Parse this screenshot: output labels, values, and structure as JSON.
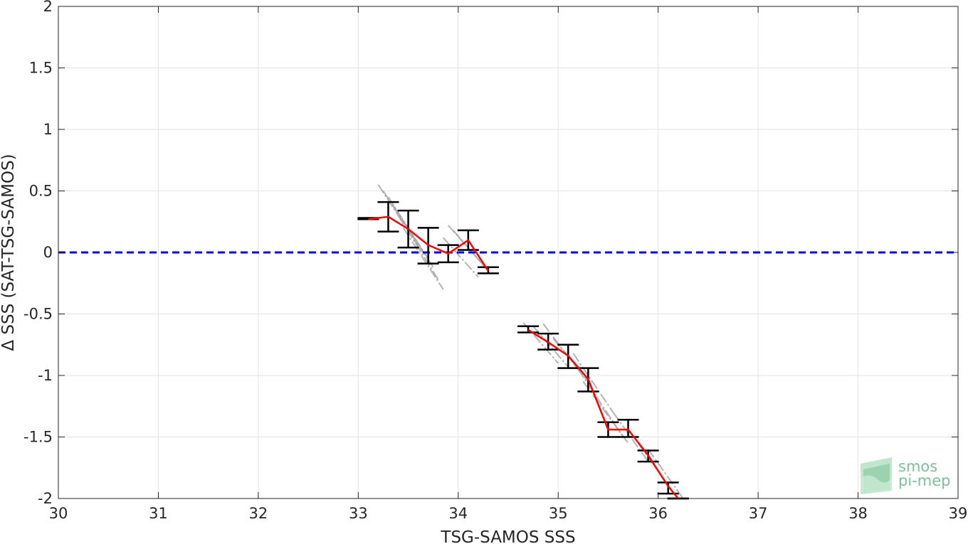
{
  "chart_data": {
    "type": "line",
    "xlabel": "TSG-SAMOS SSS",
    "ylabel": "Δ SSS (SAT-TSG-SAMOS)",
    "xlim": [
      30,
      39
    ],
    "ylim": [
      -2,
      2
    ],
    "xticks": [
      30,
      31,
      32,
      33,
      34,
      35,
      36,
      37,
      38,
      39
    ],
    "yticks": [
      -2,
      -1.5,
      -1,
      -0.5,
      0,
      0.5,
      1,
      1.5,
      2
    ],
    "grid": true,
    "reference_line": {
      "y": 0,
      "style": "dashed",
      "color": "#0000e6"
    },
    "series": [
      {
        "type": "errorbar-line",
        "color": "#ff0000",
        "segments": [
          [
            {
              "x": 33.1,
              "y": 0.27,
              "lo": 0.27,
              "hi": 0.28
            },
            {
              "x": 33.3,
              "y": 0.29,
              "lo": 0.17,
              "hi": 0.41
            },
            {
              "x": 33.5,
              "y": 0.19,
              "lo": 0.04,
              "hi": 0.34
            },
            {
              "x": 33.7,
              "y": 0.06,
              "lo": -0.09,
              "hi": 0.2
            },
            {
              "x": 33.9,
              "y": -0.01,
              "lo": -0.08,
              "hi": 0.06
            },
            {
              "x": 34.1,
              "y": 0.1,
              "lo": 0.02,
              "hi": 0.18
            },
            {
              "x": 34.3,
              "y": -0.15,
              "lo": -0.17,
              "hi": -0.12
            }
          ],
          [
            {
              "x": 34.7,
              "y": -0.63,
              "lo": -0.65,
              "hi": -0.6
            },
            {
              "x": 34.9,
              "y": -0.73,
              "lo": -0.79,
              "hi": -0.66
            },
            {
              "x": 35.1,
              "y": -0.84,
              "lo": -0.94,
              "hi": -0.75
            },
            {
              "x": 35.3,
              "y": -1.03,
              "lo": -1.13,
              "hi": -0.94
            },
            {
              "x": 35.5,
              "y": -1.44,
              "lo": -1.5,
              "hi": -1.38
            },
            {
              "x": 35.7,
              "y": -1.44,
              "lo": -1.5,
              "hi": -1.36
            },
            {
              "x": 35.9,
              "y": -1.65,
              "lo": -1.7,
              "hi": -1.61
            },
            {
              "x": 36.1,
              "y": -1.9,
              "lo": -1.96,
              "hi": -1.87
            },
            {
              "x": 36.2,
              "y": -2.0,
              "lo": -2.0,
              "hi": -2.0
            }
          ]
        ]
      }
    ],
    "scatter_gray": [
      [
        [
          33.2,
          0.55
        ],
        [
          33.6,
          0.05
        ]
      ],
      [
        [
          33.25,
          0.5
        ],
        [
          33.65,
          0.0
        ]
      ],
      [
        [
          33.3,
          0.45
        ],
        [
          33.7,
          -0.05
        ]
      ],
      [
        [
          33.35,
          0.38
        ],
        [
          33.75,
          -0.12
        ]
      ],
      [
        [
          33.4,
          0.3
        ],
        [
          33.8,
          -0.22
        ]
      ],
      [
        [
          33.45,
          0.2
        ],
        [
          33.85,
          -0.3
        ]
      ],
      [
        [
          33.9,
          0.22
        ],
        [
          34.25,
          -0.1
        ]
      ],
      [
        [
          33.95,
          0.18
        ],
        [
          34.3,
          -0.15
        ]
      ],
      [
        [
          33.85,
          0.12
        ],
        [
          34.2,
          -0.2
        ]
      ],
      [
        [
          34.65,
          -0.57
        ],
        [
          35.0,
          -0.9
        ]
      ],
      [
        [
          34.75,
          -0.6
        ],
        [
          35.1,
          -0.93
        ]
      ],
      [
        [
          34.85,
          -0.58
        ],
        [
          35.2,
          -0.95
        ]
      ],
      [
        [
          34.95,
          -0.7
        ],
        [
          35.3,
          -1.05
        ]
      ],
      [
        [
          35.15,
          -0.82
        ],
        [
          35.55,
          -1.3
        ]
      ],
      [
        [
          35.2,
          -0.95
        ],
        [
          35.65,
          -1.5
        ]
      ],
      [
        [
          35.25,
          -1.05
        ],
        [
          35.7,
          -1.55
        ]
      ],
      [
        [
          35.55,
          -1.3
        ],
        [
          35.9,
          -1.7
        ]
      ],
      [
        [
          35.8,
          -1.55
        ],
        [
          36.15,
          -1.95
        ]
      ],
      [
        [
          35.9,
          -1.6
        ],
        [
          36.25,
          -2.0
        ]
      ]
    ]
  },
  "logo": {
    "line1": "smos",
    "line2": "pi-mep"
  }
}
